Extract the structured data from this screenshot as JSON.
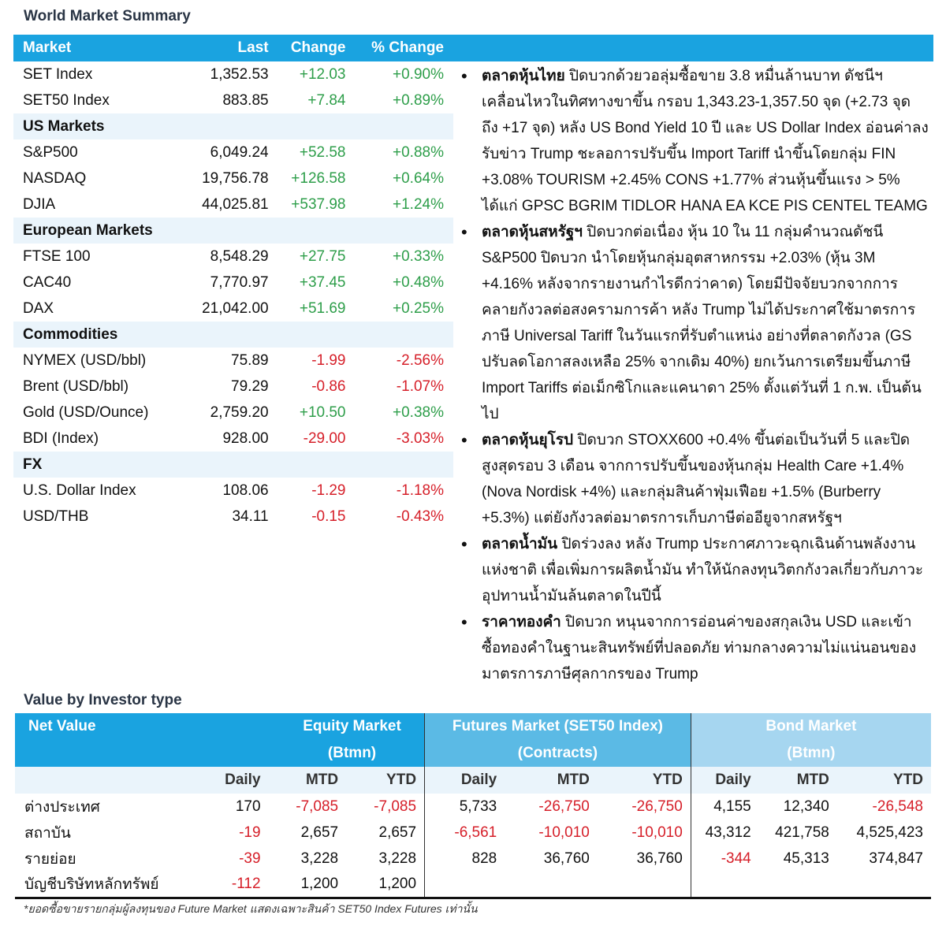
{
  "world": {
    "title": "World Market Summary",
    "headers": [
      "Market",
      "Last",
      "Change",
      "% Change"
    ],
    "rows": [
      {
        "name": "SET Index",
        "last": "1,352.53",
        "change": "+12.03",
        "pct": "+0.90%"
      },
      {
        "name": "SET50 Index",
        "last": "883.85",
        "change": "+7.84",
        "pct": "+0.89%"
      },
      {
        "section": "US Markets"
      },
      {
        "name": "S&P500",
        "last": "6,049.24",
        "change": "+52.58",
        "pct": "+0.88%"
      },
      {
        "name": "NASDAQ",
        "last": "19,756.78",
        "change": "+126.58",
        "pct": "+0.64%"
      },
      {
        "name": "DJIA",
        "last": "44,025.81",
        "change": "+537.98",
        "pct": "+1.24%"
      },
      {
        "section": "European Markets"
      },
      {
        "name": "FTSE 100",
        "last": "8,548.29",
        "change": "+27.75",
        "pct": "+0.33%"
      },
      {
        "name": "CAC40",
        "last": "7,770.97",
        "change": "+37.45",
        "pct": "+0.48%"
      },
      {
        "name": "DAX",
        "last": "21,042.00",
        "change": "+51.69",
        "pct": "+0.25%"
      },
      {
        "section": "Commodities"
      },
      {
        "name": "NYMEX (USD/bbl)",
        "last": "75.89",
        "change": "-1.99",
        "pct": "-2.56%"
      },
      {
        "name": "Brent (USD/bbl)",
        "last": "79.29",
        "change": "-0.86",
        "pct": "-1.07%"
      },
      {
        "name": "Gold (USD/Ounce)",
        "last": "2,759.20",
        "change": "+10.50",
        "pct": "+0.38%"
      },
      {
        "name": "BDI (Index)",
        "last": "928.00",
        "change": "-29.00",
        "pct": "-3.03%"
      },
      {
        "section": "FX"
      },
      {
        "name": "U.S. Dollar Index",
        "last": "108.06",
        "change": "-1.29",
        "pct": "-1.18%"
      },
      {
        "name": "USD/THB",
        "last": "34.11",
        "change": "-0.15",
        "pct": "-0.43%"
      }
    ]
  },
  "news": [
    {
      "head": "ตลาดหุ้นไทย",
      "body": " ปิดบวกด้วยวอลุ่มซื้อขาย 3.8 หมื่นล้านบาท ดัชนีฯ เคลื่อนไหวในทิศทางขาขึ้น กรอบ 1,343.23-1,357.50 จุด (+2.73 จุด ถึง +17 จุด) หลัง US Bond Yield 10 ปี และ US Dollar Index อ่อนค่าลง รับข่าว Trump ชะลอการปรับขึ้น Import Tariff นำขึ้นโดยกลุ่ม FIN +3.08% TOURISM +2.45% CONS +1.77% ส่วนหุ้นขึ้นแรง > 5% ได้แก่ GPSC BGRIM TIDLOR HANA EA KCE PIS CENTEL TEAMG"
    },
    {
      "head": "ตลาดหุ้นสหรัฐฯ",
      "body": " ปิดบวกต่อเนื่อง หุ้น 10 ใน 11 กลุ่มคำนวณดัชนี S&P500 ปิดบวก นำโดยหุ้นกลุ่มอุตสาหกรรม +2.03% (หุ้น 3M +4.16% หลังจากรายงานกำไรดีกว่าคาด) โดยมีปัจจัยบวกจากการคลายกังวลต่อสงครามการค้า หลัง Trump ไม่ได้ประกาศใช้มาตรการภาษี Universal Tariff ในวันแรกที่รับตำแหน่ง อย่างที่ตลาดกังวล (GS ปรับลดโอกาสลงเหลือ 25% จากเดิม 40%) ยกเว้นการเตรียมขึ้นภาษี Import Tariffs ต่อเม็กซิโกและแคนาดา 25% ตั้งแต่วันที่ 1 ก.พ. เป็นต้นไป"
    },
    {
      "head": "ตลาดหุ้นยุโรป",
      "body": " ปิดบวก STOXX600 +0.4% ขึ้นต่อเป็นวันที่ 5 และปิดสูงสุดรอบ 3 เดือน จากการปรับขึ้นของหุ้นกลุ่ม Health Care +1.4% (Nova Nordisk +4%) และกลุ่มสินค้าฟุ่มเฟือย +1.5% (Burberry +5.3%) แต่ยังกังวลต่อมาตรการเก็บภาษีต่ออียูจากสหรัฐฯ"
    },
    {
      "head": "ตลาดน้ำมัน",
      "body": " ปิดร่วงลง หลัง Trump ประกาศภาวะฉุกเฉินด้านพลังงานแห่งชาติ เพื่อเพิ่มการผลิตน้ำมัน ทำให้นักลงทุนวิตกกังวลเกี่ยวกับภาวะอุปทานน้ำมันล้นตลาดในปีนี้"
    },
    {
      "head": "ราคาทองคำ",
      "body": " ปิดบวก หนุนจากการอ่อนค่าของสกุลเงิน USD และเข้าซื้อทองคำในฐานะสินทรัพย์ที่ปลอดภัย ท่ามกลางความไม่แน่นอนของมาตรการภาษีศุลกากรของ Trump"
    }
  ],
  "investor": {
    "title": "Value by Investor type",
    "net_value": "Net Value",
    "groups": [
      {
        "name": "Equity Market",
        "unit": "(Btmn)"
      },
      {
        "name": "Futures Market (SET50 Index)",
        "unit": "(Contracts)"
      },
      {
        "name": "Bond Market",
        "unit": "(Btmn)"
      }
    ],
    "sub": [
      "Daily",
      "MTD",
      "YTD"
    ],
    "rows": [
      {
        "label": "ต่างประเทศ",
        "v": [
          "170",
          "-7,085",
          "-7,085",
          "5,733",
          "-26,750",
          "-26,750",
          "4,155",
          "12,340",
          "-26,548"
        ]
      },
      {
        "label": "สถาบัน",
        "v": [
          "-19",
          "2,657",
          "2,657",
          "-6,561",
          "-10,010",
          "-10,010",
          "43,312",
          "421,758",
          "4,525,423"
        ]
      },
      {
        "label": "รายย่อย",
        "v": [
          "-39",
          "3,228",
          "3,228",
          "828",
          "36,760",
          "36,760",
          "-344",
          "45,313",
          "374,847"
        ]
      },
      {
        "label": "บัญชีบริษัทหลักทรัพย์",
        "v": [
          "-112",
          "1,200",
          "1,200",
          "",
          "",
          "",
          "",
          "",
          ""
        ]
      }
    ],
    "note": "*ยอดซื้อขายรายกลุ่มผู้ลงทุนของ Future Market แสดงเฉพาะสินค้า SET50 Index Futures เท่านั้น"
  },
  "colors": {
    "header": "#1aa3e0",
    "futures": "#5bbae5",
    "bond": "#a6d6f0",
    "pos": "#2e9e4a",
    "neg": "#d6202a"
  }
}
